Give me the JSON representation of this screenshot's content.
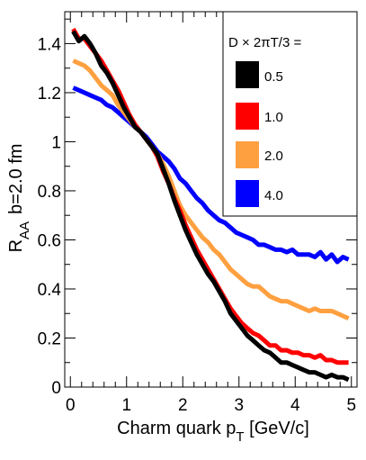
{
  "chart_data": {
    "type": "line",
    "xlabel": {
      "main": "Charm quark p",
      "sub": "T",
      "unit": " [GeV/c]"
    },
    "ylabel": {
      "main": "R",
      "sub": "AA",
      "extra": "b=2.0 fm"
    },
    "xlim": [
      -0.1,
      5.1
    ],
    "ylim": [
      0,
      1.53
    ],
    "x_ticks": [
      0,
      1,
      2,
      3,
      4,
      5
    ],
    "x_tick_labels": [
      "0",
      "1",
      "2",
      "3",
      "4",
      "5"
    ],
    "y_ticks": [
      0,
      0.2,
      0.4,
      0.6,
      0.8,
      1,
      1.2,
      1.4
    ],
    "y_tick_labels": [
      "0",
      "0.2",
      "0.4",
      "0.6",
      "0.8",
      "1",
      "1.2",
      "1.4"
    ],
    "grid": false,
    "legend": {
      "placement": "top-right",
      "title": "D × 2πT/3 ="
    },
    "series": [
      {
        "name": "0.5",
        "color": "#000000",
        "x": [
          0.05,
          0.15,
          0.25,
          0.35,
          0.45,
          0.55,
          0.65,
          0.75,
          0.85,
          0.95,
          1.05,
          1.15,
          1.25,
          1.35,
          1.45,
          1.55,
          1.65,
          1.75,
          1.85,
          1.95,
          2.05,
          2.15,
          2.25,
          2.35,
          2.45,
          2.55,
          2.65,
          2.75,
          2.85,
          2.95,
          3.05,
          3.15,
          3.25,
          3.35,
          3.45,
          3.55,
          3.65,
          3.75,
          3.85,
          3.95,
          4.05,
          4.15,
          4.25,
          4.35,
          4.45,
          4.55,
          4.65,
          4.75,
          4.85,
          4.95
        ],
        "y": [
          1.45,
          1.41,
          1.43,
          1.4,
          1.36,
          1.31,
          1.28,
          1.24,
          1.19,
          1.14,
          1.1,
          1.06,
          1.04,
          1.01,
          0.98,
          0.95,
          0.89,
          0.83,
          0.76,
          0.7,
          0.64,
          0.59,
          0.54,
          0.5,
          0.46,
          0.43,
          0.39,
          0.35,
          0.3,
          0.27,
          0.24,
          0.21,
          0.19,
          0.17,
          0.15,
          0.14,
          0.12,
          0.1,
          0.1,
          0.09,
          0.08,
          0.07,
          0.06,
          0.06,
          0.05,
          0.04,
          0.05,
          0.04,
          0.04,
          0.03
        ]
      },
      {
        "name": "1.0",
        "color": "#ff0000",
        "x": [
          0.05,
          0.15,
          0.25,
          0.35,
          0.45,
          0.55,
          0.65,
          0.75,
          0.85,
          0.95,
          1.05,
          1.15,
          1.25,
          1.35,
          1.45,
          1.55,
          1.65,
          1.75,
          1.85,
          1.95,
          2.05,
          2.15,
          2.25,
          2.35,
          2.45,
          2.55,
          2.65,
          2.75,
          2.85,
          2.95,
          3.05,
          3.15,
          3.25,
          3.35,
          3.45,
          3.55,
          3.65,
          3.75,
          3.85,
          3.95,
          4.05,
          4.15,
          4.25,
          4.35,
          4.45,
          4.55,
          4.65,
          4.75,
          4.85,
          4.95
        ],
        "y": [
          1.46,
          1.42,
          1.42,
          1.39,
          1.36,
          1.33,
          1.29,
          1.25,
          1.21,
          1.16,
          1.11,
          1.07,
          1.04,
          1.01,
          0.98,
          0.94,
          0.88,
          0.83,
          0.77,
          0.72,
          0.66,
          0.61,
          0.56,
          0.52,
          0.48,
          0.44,
          0.4,
          0.36,
          0.32,
          0.29,
          0.26,
          0.24,
          0.22,
          0.21,
          0.19,
          0.17,
          0.17,
          0.15,
          0.15,
          0.14,
          0.14,
          0.13,
          0.13,
          0.12,
          0.13,
          0.11,
          0.11,
          0.1,
          0.1,
          0.1
        ]
      },
      {
        "name": "2.0",
        "color": "#ffa040",
        "x": [
          0.05,
          0.15,
          0.25,
          0.35,
          0.45,
          0.55,
          0.65,
          0.75,
          0.85,
          0.95,
          1.05,
          1.15,
          1.25,
          1.35,
          1.45,
          1.55,
          1.65,
          1.75,
          1.85,
          1.95,
          2.05,
          2.15,
          2.25,
          2.35,
          2.45,
          2.55,
          2.65,
          2.75,
          2.85,
          2.95,
          3.05,
          3.15,
          3.25,
          3.35,
          3.45,
          3.55,
          3.65,
          3.75,
          3.85,
          3.95,
          4.05,
          4.15,
          4.25,
          4.35,
          4.45,
          4.55,
          4.65,
          4.75,
          4.85,
          4.95
        ],
        "y": [
          1.33,
          1.32,
          1.31,
          1.29,
          1.26,
          1.23,
          1.21,
          1.19,
          1.15,
          1.12,
          1.09,
          1.06,
          1.04,
          1.01,
          0.98,
          0.95,
          0.91,
          0.86,
          0.8,
          0.74,
          0.7,
          0.67,
          0.64,
          0.61,
          0.59,
          0.56,
          0.54,
          0.51,
          0.48,
          0.46,
          0.44,
          0.42,
          0.41,
          0.41,
          0.39,
          0.37,
          0.36,
          0.35,
          0.35,
          0.34,
          0.33,
          0.32,
          0.31,
          0.32,
          0.31,
          0.31,
          0.31,
          0.3,
          0.29,
          0.28
        ]
      },
      {
        "name": "4.0",
        "color": "#0000ff",
        "x": [
          0.05,
          0.15,
          0.25,
          0.35,
          0.45,
          0.55,
          0.65,
          0.75,
          0.85,
          0.95,
          1.05,
          1.15,
          1.25,
          1.35,
          1.45,
          1.55,
          1.65,
          1.75,
          1.85,
          1.95,
          2.05,
          2.15,
          2.25,
          2.35,
          2.45,
          2.55,
          2.65,
          2.75,
          2.85,
          2.95,
          3.05,
          3.15,
          3.25,
          3.35,
          3.45,
          3.55,
          3.65,
          3.75,
          3.85,
          3.95,
          4.05,
          4.15,
          4.25,
          4.35,
          4.45,
          4.55,
          4.65,
          4.75,
          4.85,
          4.95
        ],
        "y": [
          1.22,
          1.21,
          1.2,
          1.19,
          1.18,
          1.17,
          1.15,
          1.14,
          1.12,
          1.1,
          1.08,
          1.06,
          1.04,
          1.02,
          0.99,
          0.96,
          0.94,
          0.92,
          0.89,
          0.85,
          0.83,
          0.8,
          0.77,
          0.75,
          0.72,
          0.7,
          0.68,
          0.67,
          0.65,
          0.63,
          0.62,
          0.61,
          0.6,
          0.58,
          0.58,
          0.57,
          0.56,
          0.56,
          0.55,
          0.56,
          0.54,
          0.54,
          0.54,
          0.53,
          0.55,
          0.52,
          0.54,
          0.51,
          0.53,
          0.52
        ]
      }
    ]
  }
}
